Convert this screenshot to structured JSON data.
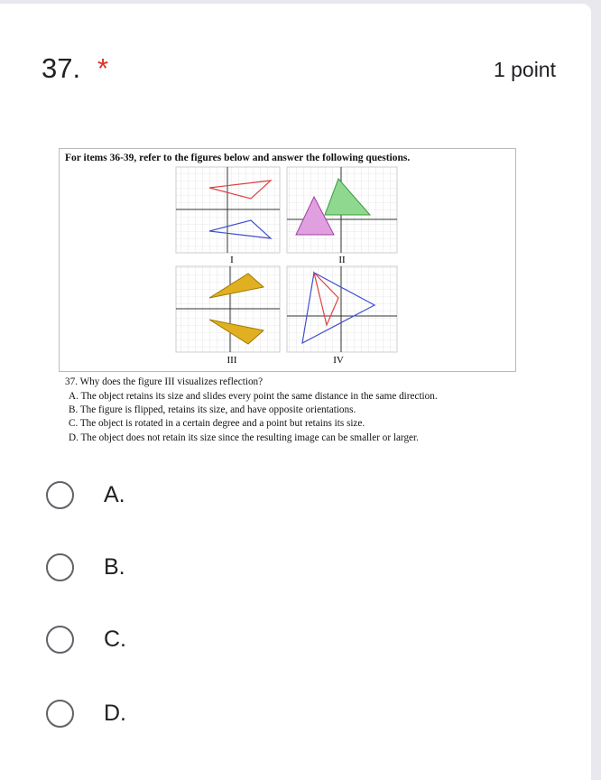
{
  "question": {
    "number": "37.",
    "required_mark": "*",
    "points": "1 point"
  },
  "figure": {
    "heading": "For items 36-39, refer to the figures below and answer the following questions.",
    "panel_labels": [
      "I",
      "II",
      "III",
      "IV"
    ],
    "question_text": "37. Why does the figure III visualizes reflection?",
    "choices": [
      "A. The object retains its size and slides every point the same distance in the same direction.",
      "B. The figure is flipped, retains its size, and have opposite orientations.",
      "C. The object is rotated in a certain degree and a point but retains its size.",
      "D. The object does not retain its size since the resulting image can be smaller or larger."
    ]
  },
  "options": [
    "A.",
    "B.",
    "C.",
    "D."
  ]
}
